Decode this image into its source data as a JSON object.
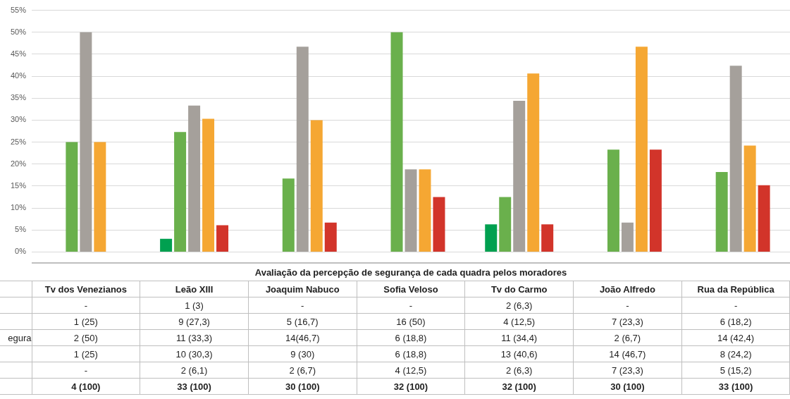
{
  "chart_data": {
    "type": "bar",
    "title": "Avaliação da percepção de segurança de cada quadra pelos moradores",
    "categories": [
      "Tv dos Venezianos",
      "Leão XIII",
      "Joaquim Nabuco",
      "Sofia Veloso",
      "Tv do Carmo",
      "João Alfredo",
      "Rua da República"
    ],
    "series": [
      {
        "color": "#00a050",
        "values": [
          null,
          3,
          null,
          null,
          6.3,
          null,
          null
        ],
        "value_labels": [
          "-",
          "1 (3)",
          "-",
          "-",
          "2 (6,3)",
          "-",
          "-"
        ]
      },
      {
        "color": "#6ab04c",
        "values": [
          25,
          27.3,
          16.7,
          50,
          12.5,
          23.3,
          18.2
        ],
        "value_labels": [
          "1 (25)",
          "9 (27,3)",
          "5 (16,7)",
          "16 (50)",
          "4 (12,5)",
          "7 (23,3)",
          "6 (18,2)"
        ]
      },
      {
        "name": "egura",
        "color": "#a5a09b",
        "values": [
          50,
          33.3,
          46.7,
          18.8,
          34.4,
          6.7,
          42.4
        ],
        "value_labels": [
          "2 (50)",
          "11 (33,3)",
          "14(46,7)",
          "6 (18,8)",
          "11 (34,4)",
          "2 (6,7)",
          "14 (42,4)"
        ]
      },
      {
        "color": "#f5a733",
        "values": [
          25,
          30.3,
          30,
          18.8,
          40.6,
          46.7,
          24.2
        ],
        "value_labels": [
          "1 (25)",
          "10 (30,3)",
          "9 (30)",
          "6 (18,8)",
          "13 (40,6)",
          "14 (46,7)",
          "8 (24,2)"
        ]
      },
      {
        "color": "#d2342a",
        "values": [
          null,
          6.1,
          6.7,
          12.5,
          6.3,
          23.3,
          15.2
        ],
        "value_labels": [
          "-",
          "2 (6,1)",
          "2 (6,7)",
          "4 (12,5)",
          "2 (6,3)",
          "7 (23,3)",
          "5 (15,2)"
        ]
      }
    ],
    "annotations": [
      "4 (100)",
      "33 (100)",
      "30 (100)",
      "32 (100)",
      "32 (100)",
      "30 (100)",
      "33 (100)"
    ],
    "ylim": [
      0,
      55
    ],
    "yticks": [
      {
        "value": 0,
        "label": "0%"
      },
      {
        "value": 5,
        "label": "5%"
      },
      {
        "value": 10,
        "label": "10%"
      },
      {
        "value": 15,
        "label": "15%"
      },
      {
        "value": 20,
        "label": "20%"
      },
      {
        "value": 25,
        "label": "25%"
      },
      {
        "value": 30,
        "label": "30%"
      },
      {
        "value": 35,
        "label": "35%"
      },
      {
        "value": 40,
        "label": "40%"
      },
      {
        "value": 45,
        "label": "45%"
      },
      {
        "value": 50,
        "label": "50%"
      },
      {
        "value": 55,
        "label": "55%"
      }
    ],
    "grid": "y",
    "legend": false
  }
}
